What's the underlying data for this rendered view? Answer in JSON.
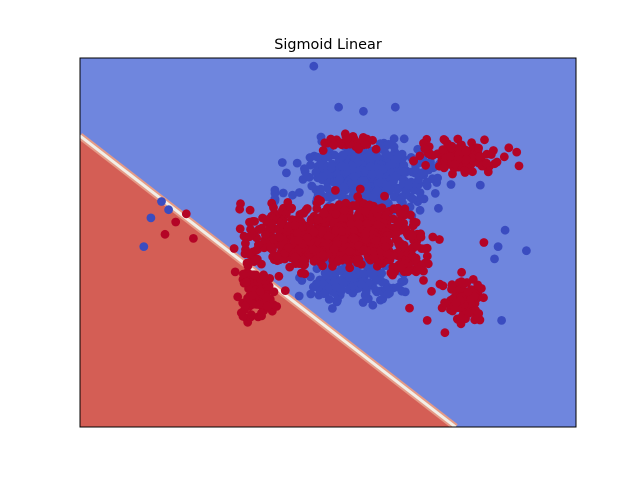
{
  "chart_data": {
    "type": "scatter",
    "title": "Sigmoid Linear",
    "xlabel": "",
    "ylabel": "",
    "xlim": [
      -3.0,
      4.0
    ],
    "ylim": [
      -2.3,
      2.2
    ],
    "axis_ticks": false,
    "grid": false,
    "decision_regions": {
      "boundary_points": [
        [
          -3.0,
          1.25
        ],
        [
          2.3,
          -2.3
        ]
      ],
      "class_1_side": "lower-left",
      "colors": {
        "class_0": "#6f86de",
        "class_1": "#d45e55",
        "boundary": "#f2efe8"
      }
    },
    "series": [
      {
        "class": 0,
        "color": "#3a4cc0",
        "clusters": [
          {
            "x": [
              -0.15,
              2.3
            ],
            "y": [
              0.25,
              1.25
            ],
            "n": 420
          },
          {
            "x": [
              0.05,
              1.7
            ],
            "y": [
              -0.9,
              -0.1
            ],
            "n": 170
          },
          {
            "x": [
              -0.25,
              -0.25
            ],
            "y": [
              0.35,
              0.65
            ],
            "n": 6
          }
        ],
        "points": [
          [
            0.3,
            2.1
          ],
          [
            0.65,
            1.6
          ],
          [
            1.45,
            1.6
          ],
          [
            -1.85,
            0.45
          ],
          [
            -1.75,
            0.35
          ],
          [
            -2.0,
            0.25
          ],
          [
            -2.1,
            -0.1
          ],
          [
            3.0,
            0.1
          ],
          [
            2.9,
            -0.1
          ],
          [
            2.85,
            -0.25
          ],
          [
            3.3,
            -0.15
          ],
          [
            2.95,
            -1.0
          ],
          [
            2.65,
            0.65
          ],
          [
            1.0,
            1.55
          ]
        ]
      },
      {
        "class": 1,
        "color": "#b40426",
        "clusters": [
          {
            "x": [
              -0.2,
              2.0
            ],
            "y": [
              -0.45,
              0.55
            ],
            "n": 520
          },
          {
            "x": [
              -1.0,
              1.0
            ],
            "y": [
              -0.45,
              0.55
            ],
            "n": 220
          },
          {
            "x": [
              -0.9,
              -0.1
            ],
            "y": [
              -1.1,
              -0.2
            ],
            "n": 90
          },
          {
            "x": [
              2.0,
              2.8
            ],
            "y": [
              -1.15,
              -0.35
            ],
            "n": 80
          },
          {
            "x": [
              1.35,
              2.0
            ],
            "y": [
              -0.6,
              0.05
            ],
            "n": 40
          },
          {
            "x": [
              1.6,
              3.1
            ],
            "y": [
              0.75,
              1.25
            ],
            "n": 110
          },
          {
            "x": [
              0.3,
              1.3
            ],
            "y": [
              1.05,
              1.3
            ],
            "n": 30
          }
        ],
        "points": [
          [
            -1.5,
            0.3
          ],
          [
            -1.65,
            0.2
          ],
          [
            -1.8,
            0.05
          ],
          [
            -1.4,
            0.0
          ],
          [
            2.15,
            -1.15
          ],
          [
            2.4,
            -0.55
          ],
          [
            2.55,
            -0.5
          ],
          [
            2.7,
            -0.05
          ],
          [
            1.65,
            -0.85
          ],
          [
            1.9,
            -1.0
          ]
        ]
      }
    ]
  }
}
